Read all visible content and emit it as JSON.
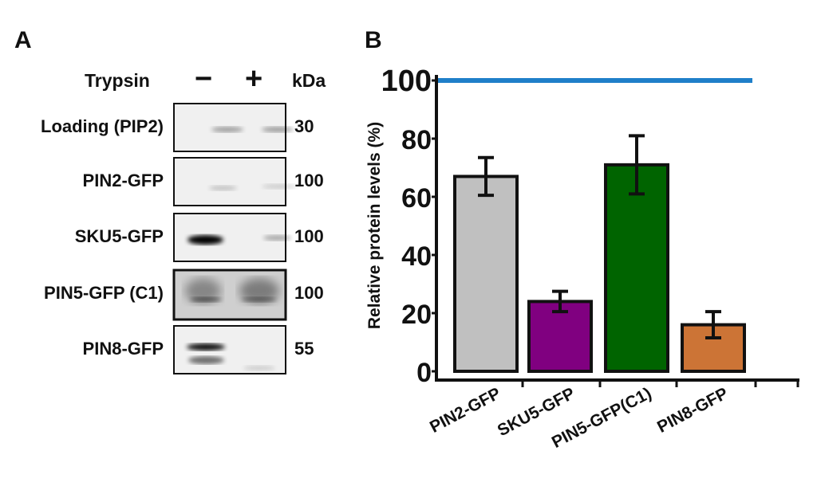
{
  "panel_a": {
    "label": "A",
    "trypsin_label": "Trypsin",
    "minus": "−",
    "plus": "+",
    "kda_label": "kDa",
    "rows": [
      {
        "name": "Loading (PIP2)",
        "kda": "30"
      },
      {
        "name": "PIN2-GFP",
        "kda": "100"
      },
      {
        "name": "SKU5-GFP",
        "kda": "100"
      },
      {
        "name": "PIN5-GFP (C1)",
        "kda": "100"
      },
      {
        "name": "PIN8-GFP",
        "kda": "55"
      }
    ]
  },
  "panel_b": {
    "label": "B"
  },
  "chart_data": {
    "type": "bar",
    "title": "",
    "xlabel": "",
    "ylabel": "Relative protein levels (%)",
    "ylim": [
      0,
      100
    ],
    "yticks": [
      "0",
      "20",
      "40",
      "60",
      "80",
      "100"
    ],
    "categories": [
      "PIN2-GFP",
      "SKU5-GFP",
      "PIN5-GFP(C1)",
      "PIN8-GFP"
    ],
    "values": [
      67,
      24,
      71,
      16
    ],
    "errors": [
      6.5,
      3.5,
      10,
      4.5
    ],
    "colors": [
      "#c0c0c0",
      "#800080",
      "#006400",
      "#cc7436"
    ],
    "reference_line": {
      "value": 100,
      "color": "#1f7fc9"
    },
    "grid": false
  }
}
